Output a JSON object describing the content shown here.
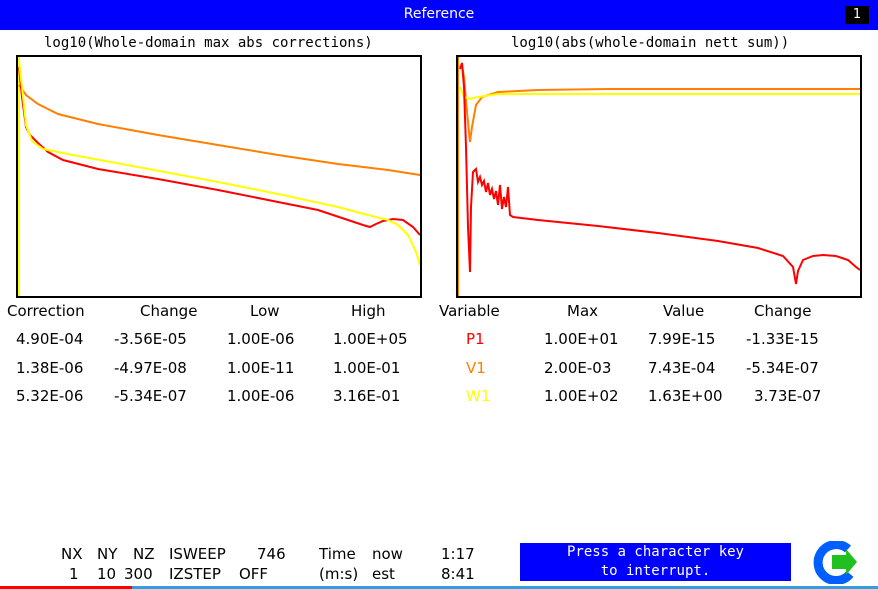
{
  "window": {
    "title": "Reference",
    "badge": "1"
  },
  "plots": {
    "left": {
      "title": "log10(Whole-domain max abs corrections)",
      "series": [
        {
          "color": "#ff8000"
        },
        {
          "color": "#ff0000"
        },
        {
          "color": "#ffff00"
        }
      ]
    },
    "right": {
      "title": "log10(abs(whole-domain nett sum))",
      "series": [
        {
          "color": "#ff8000"
        },
        {
          "color": "#ff0000"
        },
        {
          "color": "#ffff00"
        }
      ]
    }
  },
  "corrections_table": {
    "headers": [
      "Correction",
      "Change",
      "Low",
      "High"
    ],
    "rows": [
      [
        "4.90E-04",
        "-3.56E-05",
        "1.00E-06",
        "1.00E+05"
      ],
      [
        "1.38E-06",
        "-4.97E-08",
        "1.00E-11",
        "1.00E-01"
      ],
      [
        "5.32E-06",
        "-5.34E-07",
        "1.00E-06",
        "3.16E-01"
      ]
    ]
  },
  "variables_table": {
    "headers": [
      "Variable",
      "Max",
      "Value",
      "Change"
    ],
    "rows": [
      {
        "name": "P1",
        "color": "#ff0000",
        "max": "1.00E+01",
        "value": "7.99E-15",
        "change": "-1.33E-15"
      },
      {
        "name": "V1",
        "color": "#ff8000",
        "max": "2.00E-03",
        "value": "7.43E-04",
        "change": "-5.34E-07"
      },
      {
        "name": "W1",
        "color": "#ffff00",
        "max": "1.00E+02",
        "value": "1.63E+00",
        "change": "3.73E-07"
      }
    ]
  },
  "status": {
    "nx_label": "NX",
    "ny_label": "NY",
    "nz_label": "NZ",
    "isweep_label": "ISWEEP",
    "isweep_value": "746",
    "time_label": "Time",
    "now_label": "now",
    "now_value": "1:17",
    "nx": "1",
    "ny": "10",
    "nz": "300",
    "izstep_label": "IZSTEP",
    "izstep_value": "OFF",
    "ms_label": "(m:s)",
    "est_label": "est",
    "est_value": "8:41"
  },
  "message": {
    "line1": "Press a character key",
    "line2": "to interrupt."
  },
  "colors": {
    "title_bar": "#0000ff",
    "red": "#ff0000",
    "orange": "#ff8000",
    "yellow": "#ffff00"
  },
  "icons": {
    "logo": "phoenics-logo-icon"
  }
}
